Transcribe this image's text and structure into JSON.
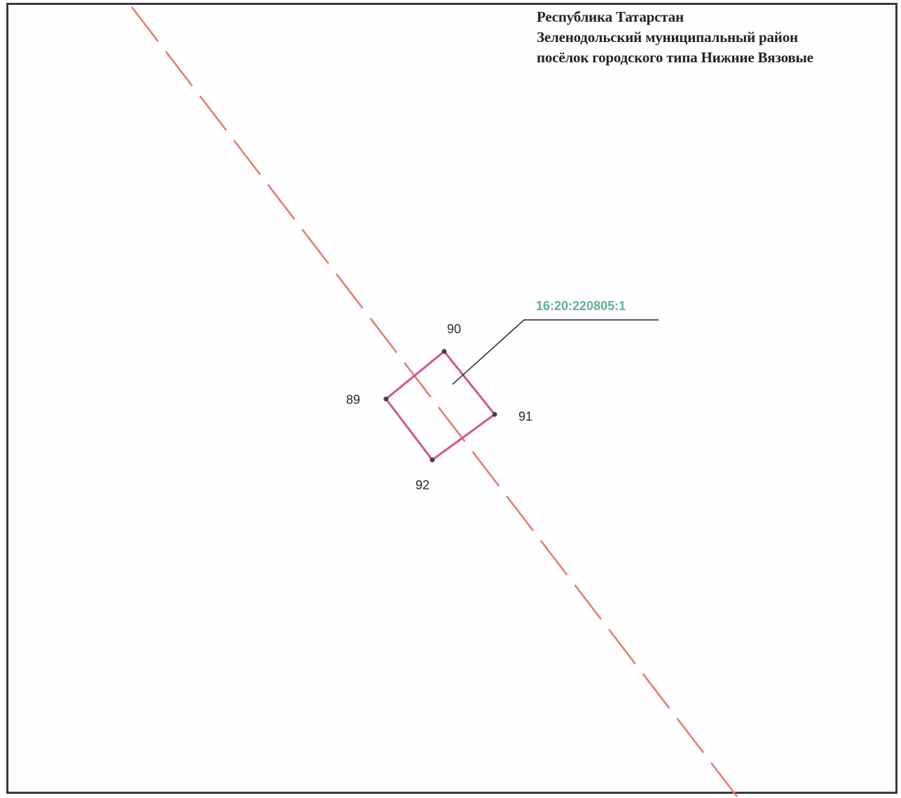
{
  "header": {
    "region": "Республика Татарстан",
    "district": "Зеленодольский муниципальный район",
    "settlement": "посёлок городского типа Нижние Вязовые"
  },
  "parcel": {
    "cadastral_number": "16:20:220805:1",
    "points": [
      {
        "id": "89",
        "label": "89"
      },
      {
        "id": "90",
        "label": "90"
      },
      {
        "id": "91",
        "label": "91"
      },
      {
        "id": "92",
        "label": "92"
      }
    ]
  },
  "colors": {
    "boundary_line": "#e8776f",
    "parcel_outline": "#d4548a",
    "parcel_label": "#5fb38a",
    "leader_line": "#222222",
    "vertex": "#444444"
  }
}
